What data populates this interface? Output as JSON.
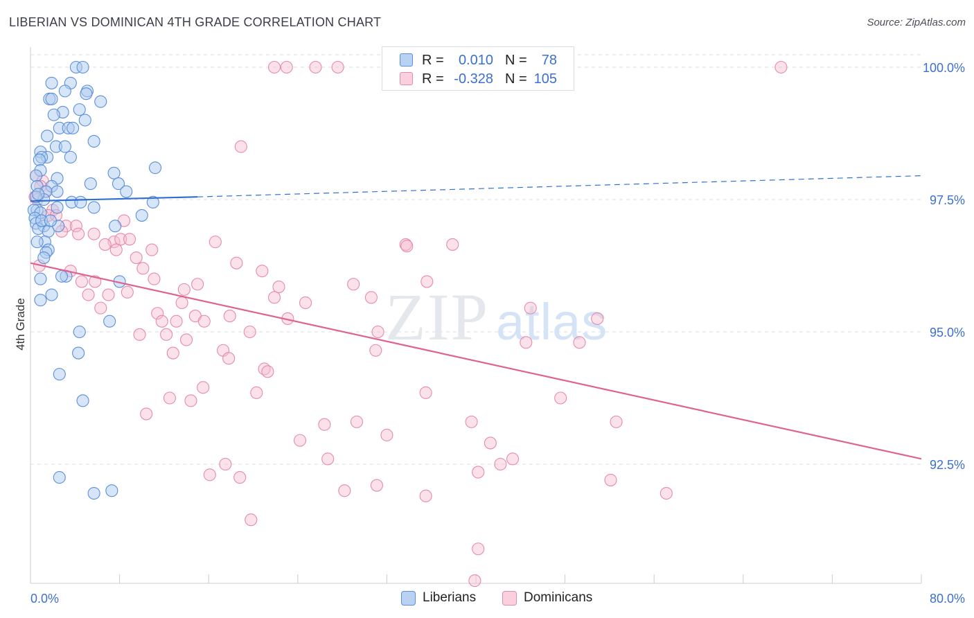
{
  "header": {
    "title": "LIBERIAN VS DOMINICAN 4TH GRADE CORRELATION CHART",
    "source": "Source: ZipAtlas.com"
  },
  "legend_top": {
    "liberians": {
      "r_label": "R =",
      "r_value": "0.010",
      "n_label": "N =",
      "n_value": "78"
    },
    "dominicans": {
      "r_label": "R =",
      "r_value": "-0.328",
      "n_label": "N =",
      "n_value": "105"
    }
  },
  "legend_bottom": {
    "liberians": "Liberians",
    "dominicans": "Dominicans"
  },
  "colors": {
    "liberian_fill": "#aecbf0",
    "liberian_stroke": "#5b8fd9",
    "liberian_line": "#2f6fd1",
    "dominican_fill": "#f7bcd0",
    "dominican_stroke": "#e68aab",
    "dominican_line": "#e0628f",
    "tick_label": "#3b6fd1",
    "grid": "#d9dee6"
  },
  "chart_data": {
    "type": "scatter",
    "title": "LIBERIAN VS DOMINICAN 4TH GRADE CORRELATION CHART",
    "xlabel": "",
    "ylabel": "4th Grade",
    "xlim": [
      0,
      80
    ],
    "ylim": [
      90.3,
      100.3
    ],
    "x_tick_labels": [
      "0.0%",
      "80.0%"
    ],
    "y_ticks": [
      92.5,
      95.0,
      97.5,
      100.0
    ],
    "y_tick_labels": [
      "92.5%",
      "95.0%",
      "97.5%",
      "100.0%"
    ],
    "grid": "horizontal dashed",
    "legend_position": "top-center",
    "watermark": "ZIPatlas",
    "series": [
      {
        "name": "Liberians",
        "r": 0.01,
        "n": 78,
        "trend": {
          "x": [
            0,
            15
          ],
          "y": [
            97.47,
            97.55
          ],
          "dashed_to": [
            80,
            97.95
          ]
        },
        "points": [
          [
            4.1,
            100.0
          ],
          [
            4.7,
            100.0
          ],
          [
            3.6,
            99.7
          ],
          [
            1.9,
            99.7
          ],
          [
            3.1,
            99.55
          ],
          [
            5.1,
            99.55
          ],
          [
            5.0,
            99.5
          ],
          [
            1.7,
            99.4
          ],
          [
            1.9,
            99.4
          ],
          [
            6.3,
            99.35
          ],
          [
            4.4,
            99.2
          ],
          [
            2.9,
            99.15
          ],
          [
            2.1,
            99.1
          ],
          [
            4.9,
            99.0
          ],
          [
            2.6,
            98.85
          ],
          [
            3.4,
            98.85
          ],
          [
            3.8,
            98.85
          ],
          [
            1.5,
            98.7
          ],
          [
            5.7,
            98.6
          ],
          [
            2.3,
            98.5
          ],
          [
            3.1,
            98.5
          ],
          [
            0.9,
            98.4
          ],
          [
            1.5,
            98.3
          ],
          [
            1.0,
            98.3
          ],
          [
            3.6,
            98.3
          ],
          [
            0.8,
            98.25
          ],
          [
            11.2,
            98.1
          ],
          [
            0.9,
            98.05
          ],
          [
            7.5,
            98.0
          ],
          [
            2.4,
            97.9
          ],
          [
            0.5,
            97.95
          ],
          [
            5.4,
            97.8
          ],
          [
            7.9,
            97.8
          ],
          [
            1.9,
            97.75
          ],
          [
            0.6,
            97.75
          ],
          [
            2.4,
            97.65
          ],
          [
            1.4,
            97.65
          ],
          [
            8.6,
            97.65
          ],
          [
            1.2,
            97.5
          ],
          [
            0.5,
            97.55
          ],
          [
            3.7,
            97.45
          ],
          [
            11.0,
            97.45
          ],
          [
            4.5,
            97.45
          ],
          [
            5.7,
            97.35
          ],
          [
            2.4,
            97.35
          ],
          [
            0.6,
            97.3
          ],
          [
            0.3,
            97.3
          ],
          [
            10.0,
            97.2
          ],
          [
            0.9,
            97.25
          ],
          [
            0.4,
            97.15
          ],
          [
            0.5,
            97.05
          ],
          [
            1.2,
            97.0
          ],
          [
            2.5,
            97.0
          ],
          [
            7.6,
            97.0
          ],
          [
            0.7,
            96.95
          ],
          [
            1.6,
            96.9
          ],
          [
            1.3,
            96.7
          ],
          [
            0.6,
            96.7
          ],
          [
            1.6,
            96.55
          ],
          [
            1.4,
            96.5
          ],
          [
            1.2,
            96.4
          ],
          [
            3.2,
            96.05
          ],
          [
            2.8,
            96.05
          ],
          [
            0.9,
            96.0
          ],
          [
            8.0,
            95.95
          ],
          [
            1.9,
            95.7
          ],
          [
            0.9,
            95.6
          ],
          [
            7.1,
            95.2
          ],
          [
            4.4,
            95.0
          ],
          [
            4.3,
            94.6
          ],
          [
            2.6,
            94.2
          ],
          [
            4.7,
            93.7
          ],
          [
            2.6,
            92.25
          ],
          [
            5.7,
            91.95
          ],
          [
            7.3,
            92.0
          ],
          [
            1.0,
            97.1
          ],
          [
            0.7,
            97.6
          ],
          [
            1.8,
            97.1
          ]
        ]
      },
      {
        "name": "Dominicans",
        "r": -0.328,
        "n": 105,
        "trend": {
          "x": [
            0,
            80
          ],
          "y": [
            96.3,
            92.6
          ]
        },
        "points": [
          [
            21.9,
            100.0
          ],
          [
            23.0,
            100.0
          ],
          [
            25.6,
            100.0
          ],
          [
            27.6,
            100.0
          ],
          [
            32.6,
            100.0
          ],
          [
            67.4,
            100.0
          ],
          [
            18.9,
            98.5
          ],
          [
            0.5,
            97.95
          ],
          [
            1.1,
            97.85
          ],
          [
            0.9,
            97.75
          ],
          [
            1.3,
            97.65
          ],
          [
            0.4,
            97.55
          ],
          [
            0.6,
            97.5
          ],
          [
            2.0,
            97.3
          ],
          [
            1.6,
            97.2
          ],
          [
            2.3,
            97.2
          ],
          [
            8.4,
            97.1
          ],
          [
            3.2,
            97.0
          ],
          [
            4.1,
            97.0
          ],
          [
            2.8,
            96.9
          ],
          [
            4.3,
            96.85
          ],
          [
            5.7,
            96.85
          ],
          [
            16.6,
            96.7
          ],
          [
            7.5,
            96.7
          ],
          [
            8.1,
            96.75
          ],
          [
            6.7,
            96.65
          ],
          [
            8.9,
            96.75
          ],
          [
            33.7,
            96.65
          ],
          [
            33.8,
            96.62
          ],
          [
            37.9,
            96.65
          ],
          [
            7.7,
            96.55
          ],
          [
            10.9,
            96.55
          ],
          [
            9.5,
            96.4
          ],
          [
            18.5,
            96.3
          ],
          [
            0.8,
            96.25
          ],
          [
            10.1,
            96.2
          ],
          [
            20.8,
            96.15
          ],
          [
            3.6,
            96.15
          ],
          [
            11.1,
            96.0
          ],
          [
            5.8,
            95.95
          ],
          [
            4.6,
            95.95
          ],
          [
            15.0,
            95.9
          ],
          [
            22.3,
            95.85
          ],
          [
            29.0,
            95.9
          ],
          [
            35.6,
            95.95
          ],
          [
            13.8,
            95.8
          ],
          [
            8.7,
            95.75
          ],
          [
            5.2,
            95.7
          ],
          [
            7.0,
            95.7
          ],
          [
            21.9,
            95.65
          ],
          [
            30.6,
            95.65
          ],
          [
            13.6,
            95.55
          ],
          [
            24.7,
            95.55
          ],
          [
            44.9,
            95.45
          ],
          [
            6.3,
            95.45
          ],
          [
            11.4,
            95.35
          ],
          [
            14.8,
            95.3
          ],
          [
            17.9,
            95.3
          ],
          [
            15.6,
            95.2
          ],
          [
            23.1,
            95.25
          ],
          [
            13.1,
            95.2
          ],
          [
            50.9,
            95.25
          ],
          [
            11.8,
            95.2
          ],
          [
            19.7,
            95.0
          ],
          [
            31.2,
            95.0
          ],
          [
            9.8,
            94.95
          ],
          [
            12.2,
            94.95
          ],
          [
            14.0,
            94.85
          ],
          [
            44.5,
            94.8
          ],
          [
            49.3,
            94.8
          ],
          [
            17.3,
            94.65
          ],
          [
            31.0,
            94.65
          ],
          [
            12.8,
            94.6
          ],
          [
            17.8,
            94.5
          ],
          [
            21.0,
            94.3
          ],
          [
            21.3,
            94.25
          ],
          [
            15.5,
            93.95
          ],
          [
            20.3,
            93.85
          ],
          [
            12.5,
            93.75
          ],
          [
            35.5,
            93.85
          ],
          [
            47.6,
            93.75
          ],
          [
            14.4,
            93.7
          ],
          [
            10.4,
            93.45
          ],
          [
            26.4,
            93.25
          ],
          [
            29.3,
            93.3
          ],
          [
            39.6,
            93.3
          ],
          [
            52.6,
            93.3
          ],
          [
            32.0,
            93.05
          ],
          [
            24.2,
            92.95
          ],
          [
            41.3,
            92.9
          ],
          [
            26.7,
            92.6
          ],
          [
            43.3,
            92.6
          ],
          [
            17.5,
            92.5
          ],
          [
            42.2,
            92.5
          ],
          [
            16.1,
            92.3
          ],
          [
            40.2,
            92.35
          ],
          [
            18.8,
            92.25
          ],
          [
            31.1,
            92.1
          ],
          [
            52.1,
            92.2
          ],
          [
            28.2,
            92.0
          ],
          [
            35.5,
            91.9
          ],
          [
            57.1,
            91.95
          ],
          [
            19.8,
            91.45
          ],
          [
            40.2,
            90.9
          ],
          [
            39.9,
            90.3
          ]
        ]
      }
    ]
  }
}
